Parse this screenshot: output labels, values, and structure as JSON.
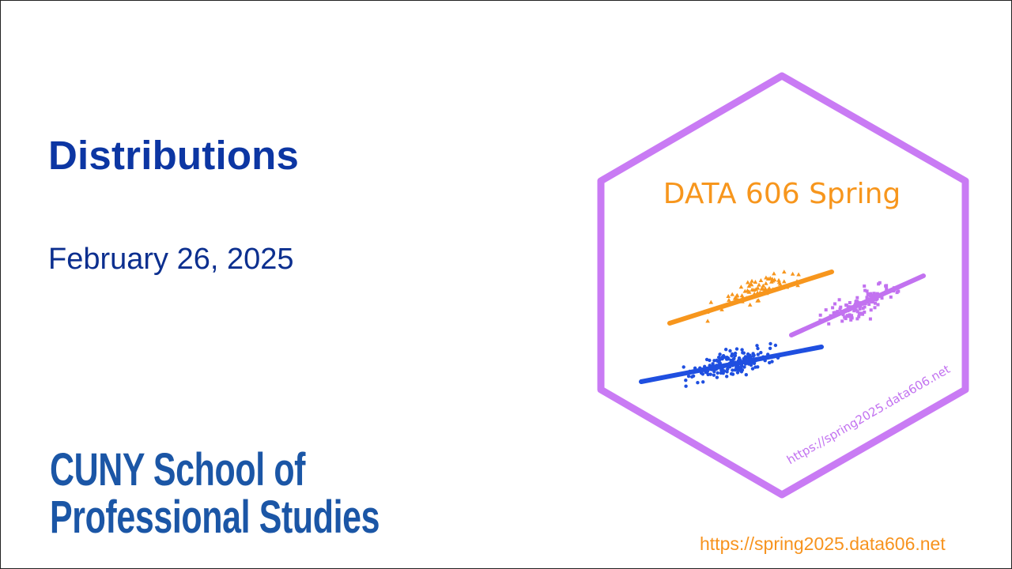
{
  "slide": {
    "title": "Distributions",
    "date": "February 26, 2025",
    "organization": {
      "line1": "CUNY School of",
      "line2": "Professional Studies"
    },
    "footer_url": "https://spring2025.data606.net"
  },
  "logo": {
    "course_label": "DATA 606 Spring",
    "url_label": "https://spring2025.data606.net",
    "colors": {
      "hex_border": "#c97bf4",
      "orange": "#f7961d",
      "blue": "#1f4fe0",
      "purple": "#c272f0"
    }
  }
}
